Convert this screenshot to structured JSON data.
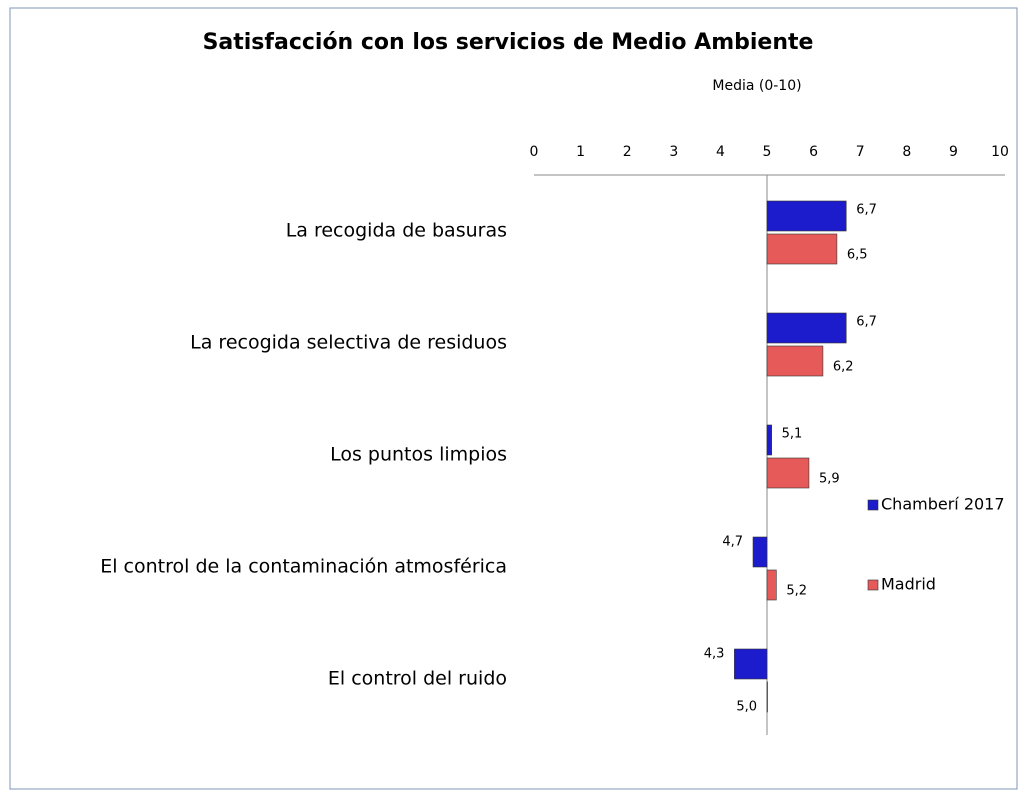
{
  "chart_data": {
    "type": "bar",
    "orientation": "horizontal",
    "title": "Satisfacción con los servicios de Medio Ambiente",
    "x_label": "Media (0-10)",
    "categories": [
      "La recogida de basuras",
      "La recogida selectiva de residuos",
      "Los puntos limpios",
      "El control de la contaminación atmosférica",
      "El control del ruido"
    ],
    "series": [
      {
        "name": "Chamberí 2017",
        "color": "#1c1ccc",
        "values": [
          6.7,
          6.7,
          5.1,
          4.7,
          4.3
        ],
        "value_labels": [
          "6,7",
          "6,7",
          "5,1",
          "4,7",
          "4,3"
        ]
      },
      {
        "name": "Madrid",
        "color": "#e65a5a",
        "values": [
          6.5,
          6.2,
          5.9,
          5.2,
          5.0
        ],
        "value_labels": [
          "6,5",
          "6,2",
          "5,9",
          "5,2",
          "5,0"
        ]
      }
    ],
    "xlim": [
      0,
      10
    ],
    "xticks": [
      0,
      1,
      2,
      3,
      4,
      5,
      6,
      7,
      8,
      9,
      10
    ],
    "axis_crosses_at": 5,
    "legend": "right"
  }
}
